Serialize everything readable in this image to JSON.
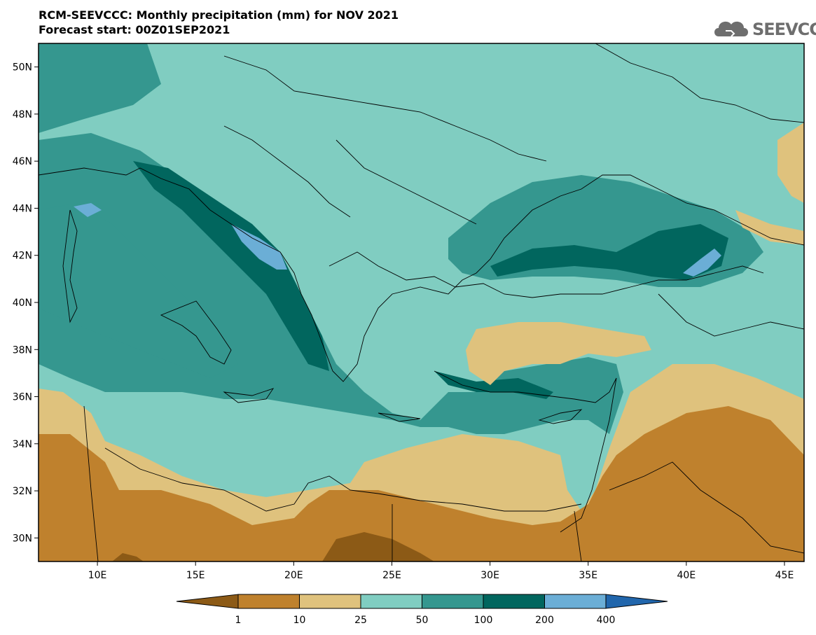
{
  "title": {
    "line1": "RCM-SEEVCCC: Monthly precipitation (mm) for NOV 2021",
    "line2": "Forecast start: 00Z01SEP2021"
  },
  "logo": {
    "text": "SEEVCCC",
    "icon": "cloud-logo-icon"
  },
  "map": {
    "lon_range": [
      7,
      46
    ],
    "lat_range": [
      29,
      51
    ],
    "lat_ticks": [
      "50N",
      "48N",
      "46N",
      "44N",
      "42N",
      "40N",
      "38N",
      "36N",
      "34N",
      "32N",
      "30N"
    ],
    "lon_ticks": [
      "10E",
      "15E",
      "20E",
      "25E",
      "30E",
      "35E",
      "40E",
      "45E"
    ]
  },
  "colorbar": {
    "labels": [
      "1",
      "10",
      "25",
      "50",
      "100",
      "200",
      "400"
    ],
    "colors": [
      "#8c5a16",
      "#bf812d",
      "#dfc27d",
      "#80cdc1",
      "#35978f",
      "#01665e",
      "#6baed6",
      "#2166ac"
    ]
  }
}
